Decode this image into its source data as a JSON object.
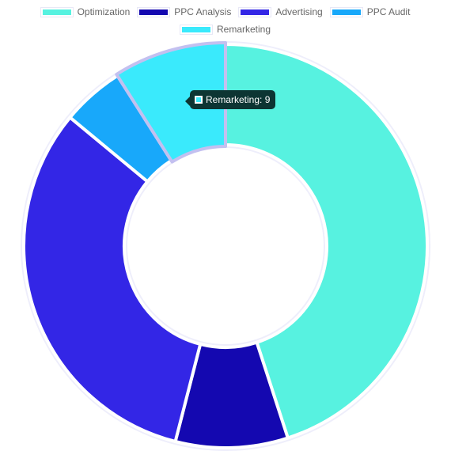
{
  "chart_data": {
    "type": "pie",
    "subtype": "doughnut",
    "labels": [
      "Optimization",
      "PPC Analysis",
      "Advertising",
      "PPC Audit",
      "Remarketing"
    ],
    "values": [
      45,
      9,
      32,
      5,
      9
    ],
    "colors": [
      "#57f2e0",
      "#1408b0",
      "#3326e6",
      "#18a8fa",
      "#3aeafc"
    ],
    "legend_position": "top",
    "hovered_index": 4
  },
  "tooltip": {
    "text": "Remarketing: 9"
  }
}
